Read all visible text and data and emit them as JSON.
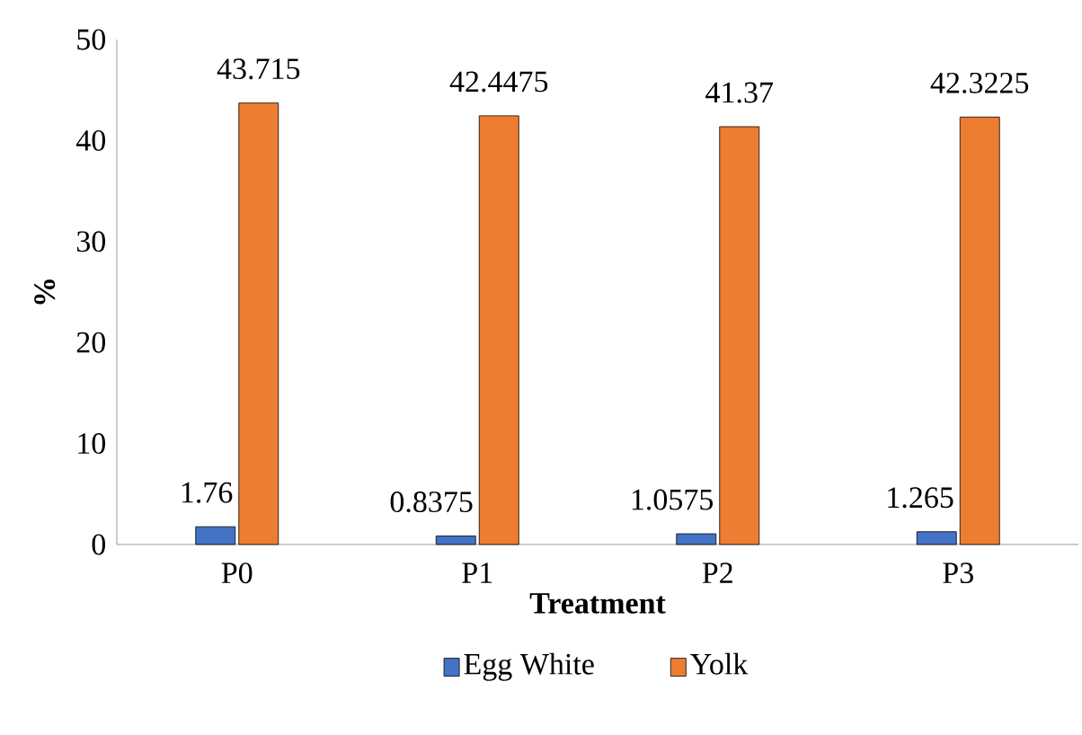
{
  "chart_data": {
    "type": "bar",
    "xlabel": "Treatment",
    "ylabel": "%",
    "categories": [
      "P0",
      "P1",
      "P2",
      "P3"
    ],
    "series": [
      {
        "name": "Egg White",
        "color": "#4472c4",
        "values": [
          1.76,
          0.8375,
          1.0575,
          1.265
        ]
      },
      {
        "name": "Yolk",
        "color": "#ed7d31",
        "values": [
          43.715,
          42.4475,
          41.37,
          42.3225
        ]
      }
    ],
    "ylim": [
      0,
      50
    ],
    "yticks": [
      0,
      10,
      20,
      30,
      40,
      50
    ],
    "data_labels": true,
    "legend": "bottom",
    "grid": false
  }
}
